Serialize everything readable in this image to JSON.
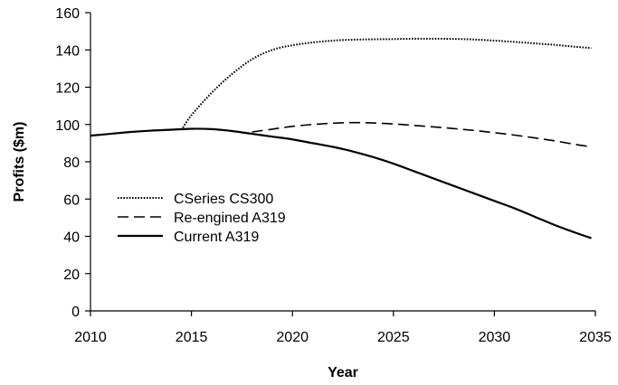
{
  "chart_data": {
    "type": "line",
    "title": "",
    "xlabel": "Year",
    "ylabel": "Profits ($m)",
    "xlim": [
      2010,
      2035
    ],
    "ylim": [
      0,
      160
    ],
    "x_ticks": [
      2010,
      2015,
      2020,
      2025,
      2030,
      2035
    ],
    "y_ticks": [
      0,
      20,
      40,
      60,
      80,
      100,
      120,
      140,
      160
    ],
    "grid": false,
    "legend_position": "left",
    "series": [
      {
        "name": "CSeries CS300",
        "style": "dotted",
        "color": "#000000",
        "x": [
          2014.5,
          2015,
          2016,
          2017,
          2018,
          2019,
          2020,
          2021,
          2022,
          2023,
          2024,
          2025,
          2026,
          2027,
          2028,
          2029,
          2030,
          2031,
          2032,
          2033,
          2034,
          2034.8
        ],
        "y": [
          97,
          105,
          117,
          127,
          135,
          140,
          142.5,
          144,
          145,
          145.5,
          145.7,
          145.8,
          146,
          146,
          145.9,
          145.6,
          145,
          144.3,
          143.5,
          142.7,
          141.7,
          141
        ]
      },
      {
        "name": "Re-engined A319",
        "style": "dashed",
        "color": "#000000",
        "x": [
          2018,
          2019,
          2020,
          2021,
          2022,
          2023,
          2024,
          2025,
          2026,
          2027,
          2028,
          2029,
          2030,
          2031,
          2032,
          2033,
          2034,
          2034.8
        ],
        "y": [
          96,
          97.5,
          99,
          100,
          100.7,
          101,
          100.8,
          100.3,
          99.5,
          98.7,
          97.8,
          96.8,
          95.6,
          94.3,
          92.8,
          91.2,
          89.3,
          88
        ]
      },
      {
        "name": "Current A319",
        "style": "solid",
        "color": "#000000",
        "x": [
          2010,
          2011,
          2012,
          2013,
          2014,
          2015,
          2016,
          2017,
          2018,
          2019,
          2020,
          2021,
          2022,
          2023,
          2024,
          2025,
          2026,
          2027,
          2028,
          2029,
          2030,
          2031,
          2032,
          2033,
          2034,
          2034.8
        ],
        "y": [
          94,
          95,
          96,
          96.7,
          97.2,
          97.7,
          97.5,
          96.5,
          95,
          93.5,
          92,
          90,
          88,
          85.5,
          82.5,
          79,
          75,
          71,
          67,
          63,
          59,
          55,
          50.5,
          46,
          42,
          39
        ]
      }
    ]
  }
}
